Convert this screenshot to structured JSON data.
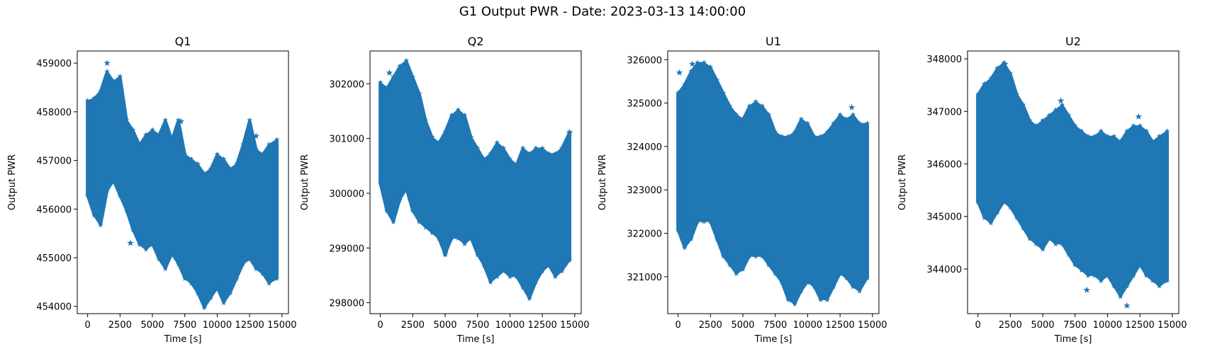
{
  "figure": {
    "title": "G1 Output PWR - Date: 2023-03-13 14:00:00",
    "series_color": "#1f77b4",
    "marker": "star"
  },
  "chart_data": [
    {
      "type": "scatter",
      "title": "Q1",
      "xlabel": "Time [s]",
      "ylabel": "Output PWR",
      "xlim": [
        -800,
        15500
      ],
      "ylim": [
        453850,
        459250
      ],
      "xticks": [
        0,
        2500,
        5000,
        7500,
        10000,
        12500,
        15000
      ],
      "yticks": [
        454000,
        455000,
        456000,
        457000,
        458000,
        459000
      ],
      "x_range": [
        0,
        14600
      ],
      "band": {
        "x": [
          0,
          500,
          1000,
          1500,
          2000,
          2500,
          3000,
          3500,
          4000,
          4500,
          5000,
          5500,
          6000,
          6500,
          7000,
          7500,
          8000,
          8500,
          9000,
          9500,
          10000,
          10500,
          11000,
          11500,
          12000,
          12500,
          13000,
          13500,
          14000,
          14600
        ],
        "upper": [
          458200,
          458250,
          458400,
          458800,
          458600,
          458700,
          457800,
          457600,
          457300,
          457500,
          457600,
          457500,
          457800,
          457400,
          457800,
          457100,
          457000,
          456900,
          456700,
          456800,
          457100,
          457000,
          456800,
          456900,
          457300,
          457800,
          457200,
          457100,
          457300,
          457400
        ],
        "lower": [
          456300,
          455900,
          455700,
          456400,
          456600,
          456300,
          456000,
          455600,
          455300,
          455200,
          455300,
          455000,
          454800,
          455100,
          454900,
          454600,
          454500,
          454300,
          454000,
          454200,
          454400,
          454100,
          454300,
          454600,
          454900,
          455000,
          454800,
          454700,
          454500,
          454600
        ]
      },
      "outliers": [
        [
          1500,
          459000
        ],
        [
          3300,
          455300
        ],
        [
          7200,
          457800
        ],
        [
          13000,
          457500
        ]
      ]
    },
    {
      "type": "scatter",
      "title": "Q2",
      "xlabel": "Time [s]",
      "ylabel": "Output PWR",
      "xlim": [
        -800,
        15500
      ],
      "ylim": [
        297800,
        302600
      ],
      "xticks": [
        0,
        2500,
        5000,
        7500,
        10000,
        12500,
        15000
      ],
      "yticks": [
        298000,
        299000,
        300000,
        301000,
        302000
      ],
      "x_range": [
        0,
        14600
      ],
      "band": {
        "x": [
          0,
          500,
          1000,
          1500,
          2000,
          2500,
          3000,
          3500,
          4000,
          4500,
          5000,
          5500,
          6000,
          6500,
          7000,
          7500,
          8000,
          8500,
          9000,
          9500,
          10000,
          10500,
          11000,
          11500,
          12000,
          12500,
          13000,
          13500,
          14000,
          14600
        ],
        "upper": [
          302000,
          301900,
          302100,
          302300,
          302400,
          302100,
          301800,
          301300,
          301000,
          300900,
          301100,
          301400,
          301500,
          301400,
          301000,
          300800,
          300600,
          300700,
          300900,
          300800,
          300600,
          300500,
          300800,
          300700,
          300800,
          300800,
          300700,
          300700,
          300800,
          301100
        ],
        "lower": [
          300200,
          299700,
          299500,
          299900,
          300100,
          299700,
          299500,
          299400,
          299300,
          299200,
          298900,
          299200,
          299200,
          299100,
          299200,
          298900,
          298700,
          298400,
          298500,
          298600,
          298500,
          298500,
          298300,
          298100,
          298400,
          298600,
          298700,
          298500,
          298600,
          298800
        ]
      },
      "outliers": [
        [
          700,
          302200
        ],
        [
          14600,
          301100
        ],
        [
          5000,
          298900
        ]
      ]
    },
    {
      "type": "scatter",
      "title": "U1",
      "xlabel": "Time [s]",
      "ylabel": "Output PWR",
      "xlim": [
        -800,
        15500
      ],
      "ylim": [
        320150,
        326200
      ],
      "xticks": [
        0,
        2500,
        5000,
        7500,
        10000,
        12500,
        15000
      ],
      "yticks": [
        321000,
        322000,
        323000,
        324000,
        325000,
        326000
      ],
      "x_range": [
        0,
        14600
      ],
      "band": {
        "x": [
          0,
          500,
          1000,
          1500,
          2000,
          2500,
          3000,
          3500,
          4000,
          4500,
          5000,
          5500,
          6000,
          6500,
          7000,
          7500,
          8000,
          8500,
          9000,
          9500,
          10000,
          10500,
          11000,
          11500,
          12000,
          12500,
          13000,
          13500,
          14000,
          14600
        ],
        "upper": [
          325200,
          325400,
          325700,
          325900,
          325900,
          325800,
          325500,
          325200,
          324900,
          324700,
          324600,
          324900,
          325000,
          324900,
          324700,
          324300,
          324200,
          324200,
          324300,
          324600,
          324500,
          324200,
          324200,
          324300,
          324500,
          324700,
          324600,
          324700,
          324500,
          324500
        ],
        "lower": [
          322100,
          321700,
          321900,
          322300,
          322300,
          322300,
          321900,
          321500,
          321300,
          321100,
          321200,
          321500,
          321500,
          321500,
          321300,
          321100,
          320900,
          320500,
          320400,
          320700,
          320900,
          320800,
          320500,
          320500,
          320800,
          321100,
          321000,
          320800,
          320700,
          321000
        ]
      },
      "outliers": [
        [
          100,
          325700
        ],
        [
          1100,
          325900
        ],
        [
          13400,
          324900
        ]
      ]
    },
    {
      "type": "scatter",
      "title": "U2",
      "xlabel": "Time [s]",
      "ylabel": "Output PWR",
      "xlim": [
        -800,
        15500
      ],
      "ylim": [
        343150,
        348150
      ],
      "xticks": [
        0,
        2500,
        5000,
        7500,
        10000,
        12500,
        15000
      ],
      "yticks": [
        344000,
        345000,
        346000,
        347000,
        348000
      ],
      "x_range": [
        0,
        14600
      ],
      "band": {
        "x": [
          0,
          500,
          1000,
          1500,
          2000,
          2500,
          3000,
          3500,
          4000,
          4500,
          5000,
          5500,
          6000,
          6500,
          7000,
          7500,
          8000,
          8500,
          9000,
          9500,
          10000,
          10500,
          11000,
          11500,
          12000,
          12500,
          13000,
          13500,
          14000,
          14600
        ],
        "upper": [
          347300,
          347500,
          347600,
          347800,
          347900,
          347700,
          347300,
          347100,
          346800,
          346700,
          346800,
          346900,
          347000,
          347100,
          346900,
          346700,
          346600,
          346500,
          346500,
          346600,
          346500,
          346500,
          346400,
          346600,
          346700,
          346700,
          346600,
          346400,
          346500,
          346600
        ],
        "lower": [
          345300,
          345000,
          344900,
          345100,
          345300,
          345200,
          345000,
          344800,
          344600,
          344500,
          344400,
          344600,
          344500,
          344500,
          344300,
          344100,
          344000,
          343900,
          343900,
          343800,
          343900,
          343700,
          343500,
          343700,
          343900,
          344100,
          343900,
          343800,
          343700,
          343800
        ]
      },
      "outliers": [
        [
          2100,
          347900
        ],
        [
          6400,
          347200
        ],
        [
          12400,
          346900
        ],
        [
          11500,
          343300
        ],
        [
          8400,
          343600
        ]
      ]
    }
  ]
}
